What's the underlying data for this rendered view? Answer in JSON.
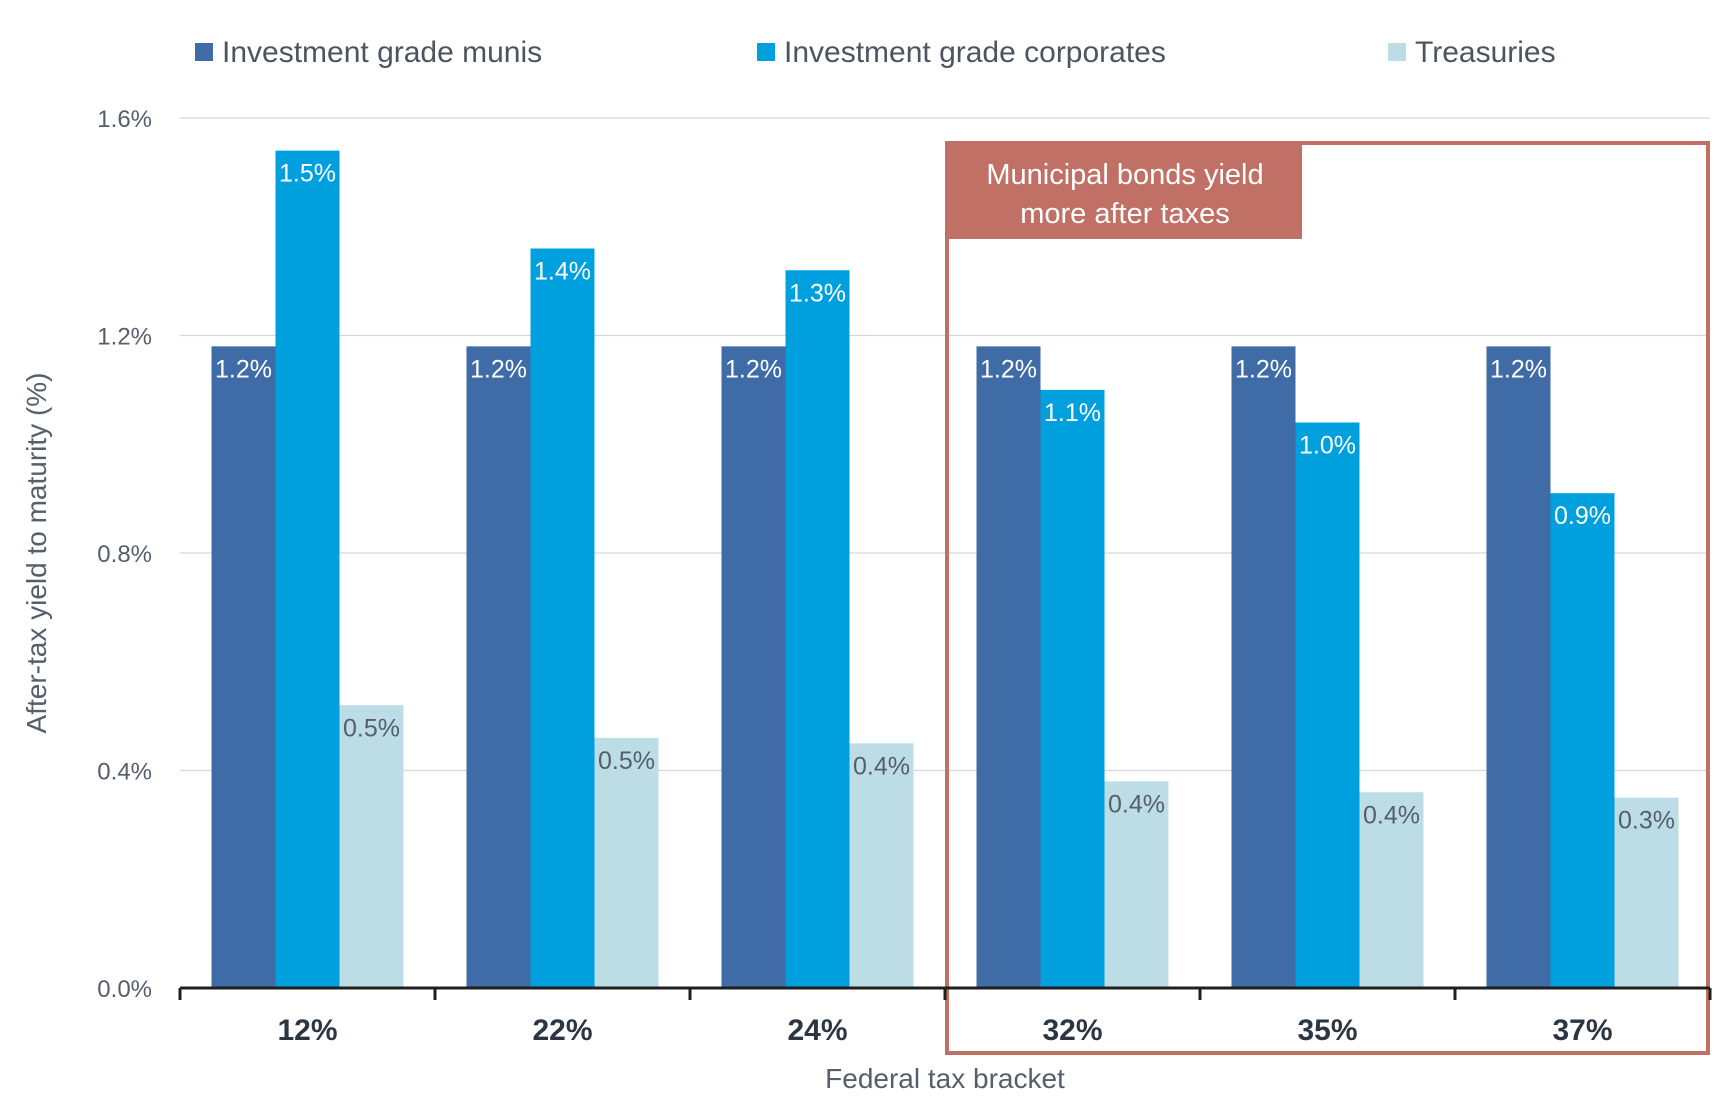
{
  "chart_data": {
    "type": "bar",
    "categories": [
      "12%",
      "22%",
      "24%",
      "32%",
      "35%",
      "37%"
    ],
    "series": [
      {
        "name": "Investment grade munis",
        "color": "#3f6ba6",
        "values": [
          1.18,
          1.18,
          1.18,
          1.18,
          1.18,
          1.18
        ],
        "labels": [
          "1.2%",
          "1.2%",
          "1.2%",
          "1.2%",
          "1.2%",
          "1.2%"
        ],
        "label_color": "#ffffff"
      },
      {
        "name": "Investment grade corporates",
        "color": "#00a0df",
        "values": [
          1.54,
          1.36,
          1.32,
          1.1,
          1.04,
          0.91
        ],
        "labels": [
          "1.5%",
          "1.4%",
          "1.3%",
          "1.1%",
          "1.0%",
          "0.9%"
        ],
        "label_color": "#ffffff"
      },
      {
        "name": "Treasuries",
        "color": "#bcdde5",
        "values": [
          0.52,
          0.46,
          0.45,
          0.38,
          0.36,
          0.35
        ],
        "labels": [
          "0.5%",
          "0.5%",
          "0.4%",
          "0.4%",
          "0.4%",
          "0.3%"
        ],
        "label_color": "#555f6b"
      }
    ],
    "xlabel": "Federal tax bracket",
    "ylabel": "After-tax yield to maturity (%)",
    "ylim": [
      0,
      1.6
    ],
    "yticks": [
      0,
      0.4,
      0.8,
      1.2,
      1.6
    ],
    "ytick_labels": [
      "0.0%",
      "0.4%",
      "0.8%",
      "1.2%",
      "1.6%"
    ],
    "grid": true,
    "legend_position": "top",
    "annotation": {
      "text_lines": [
        "Municipal bonds yield",
        "more after taxes"
      ],
      "highlight_categories": [
        "32%",
        "35%",
        "37%"
      ],
      "color": "#c07064"
    }
  }
}
